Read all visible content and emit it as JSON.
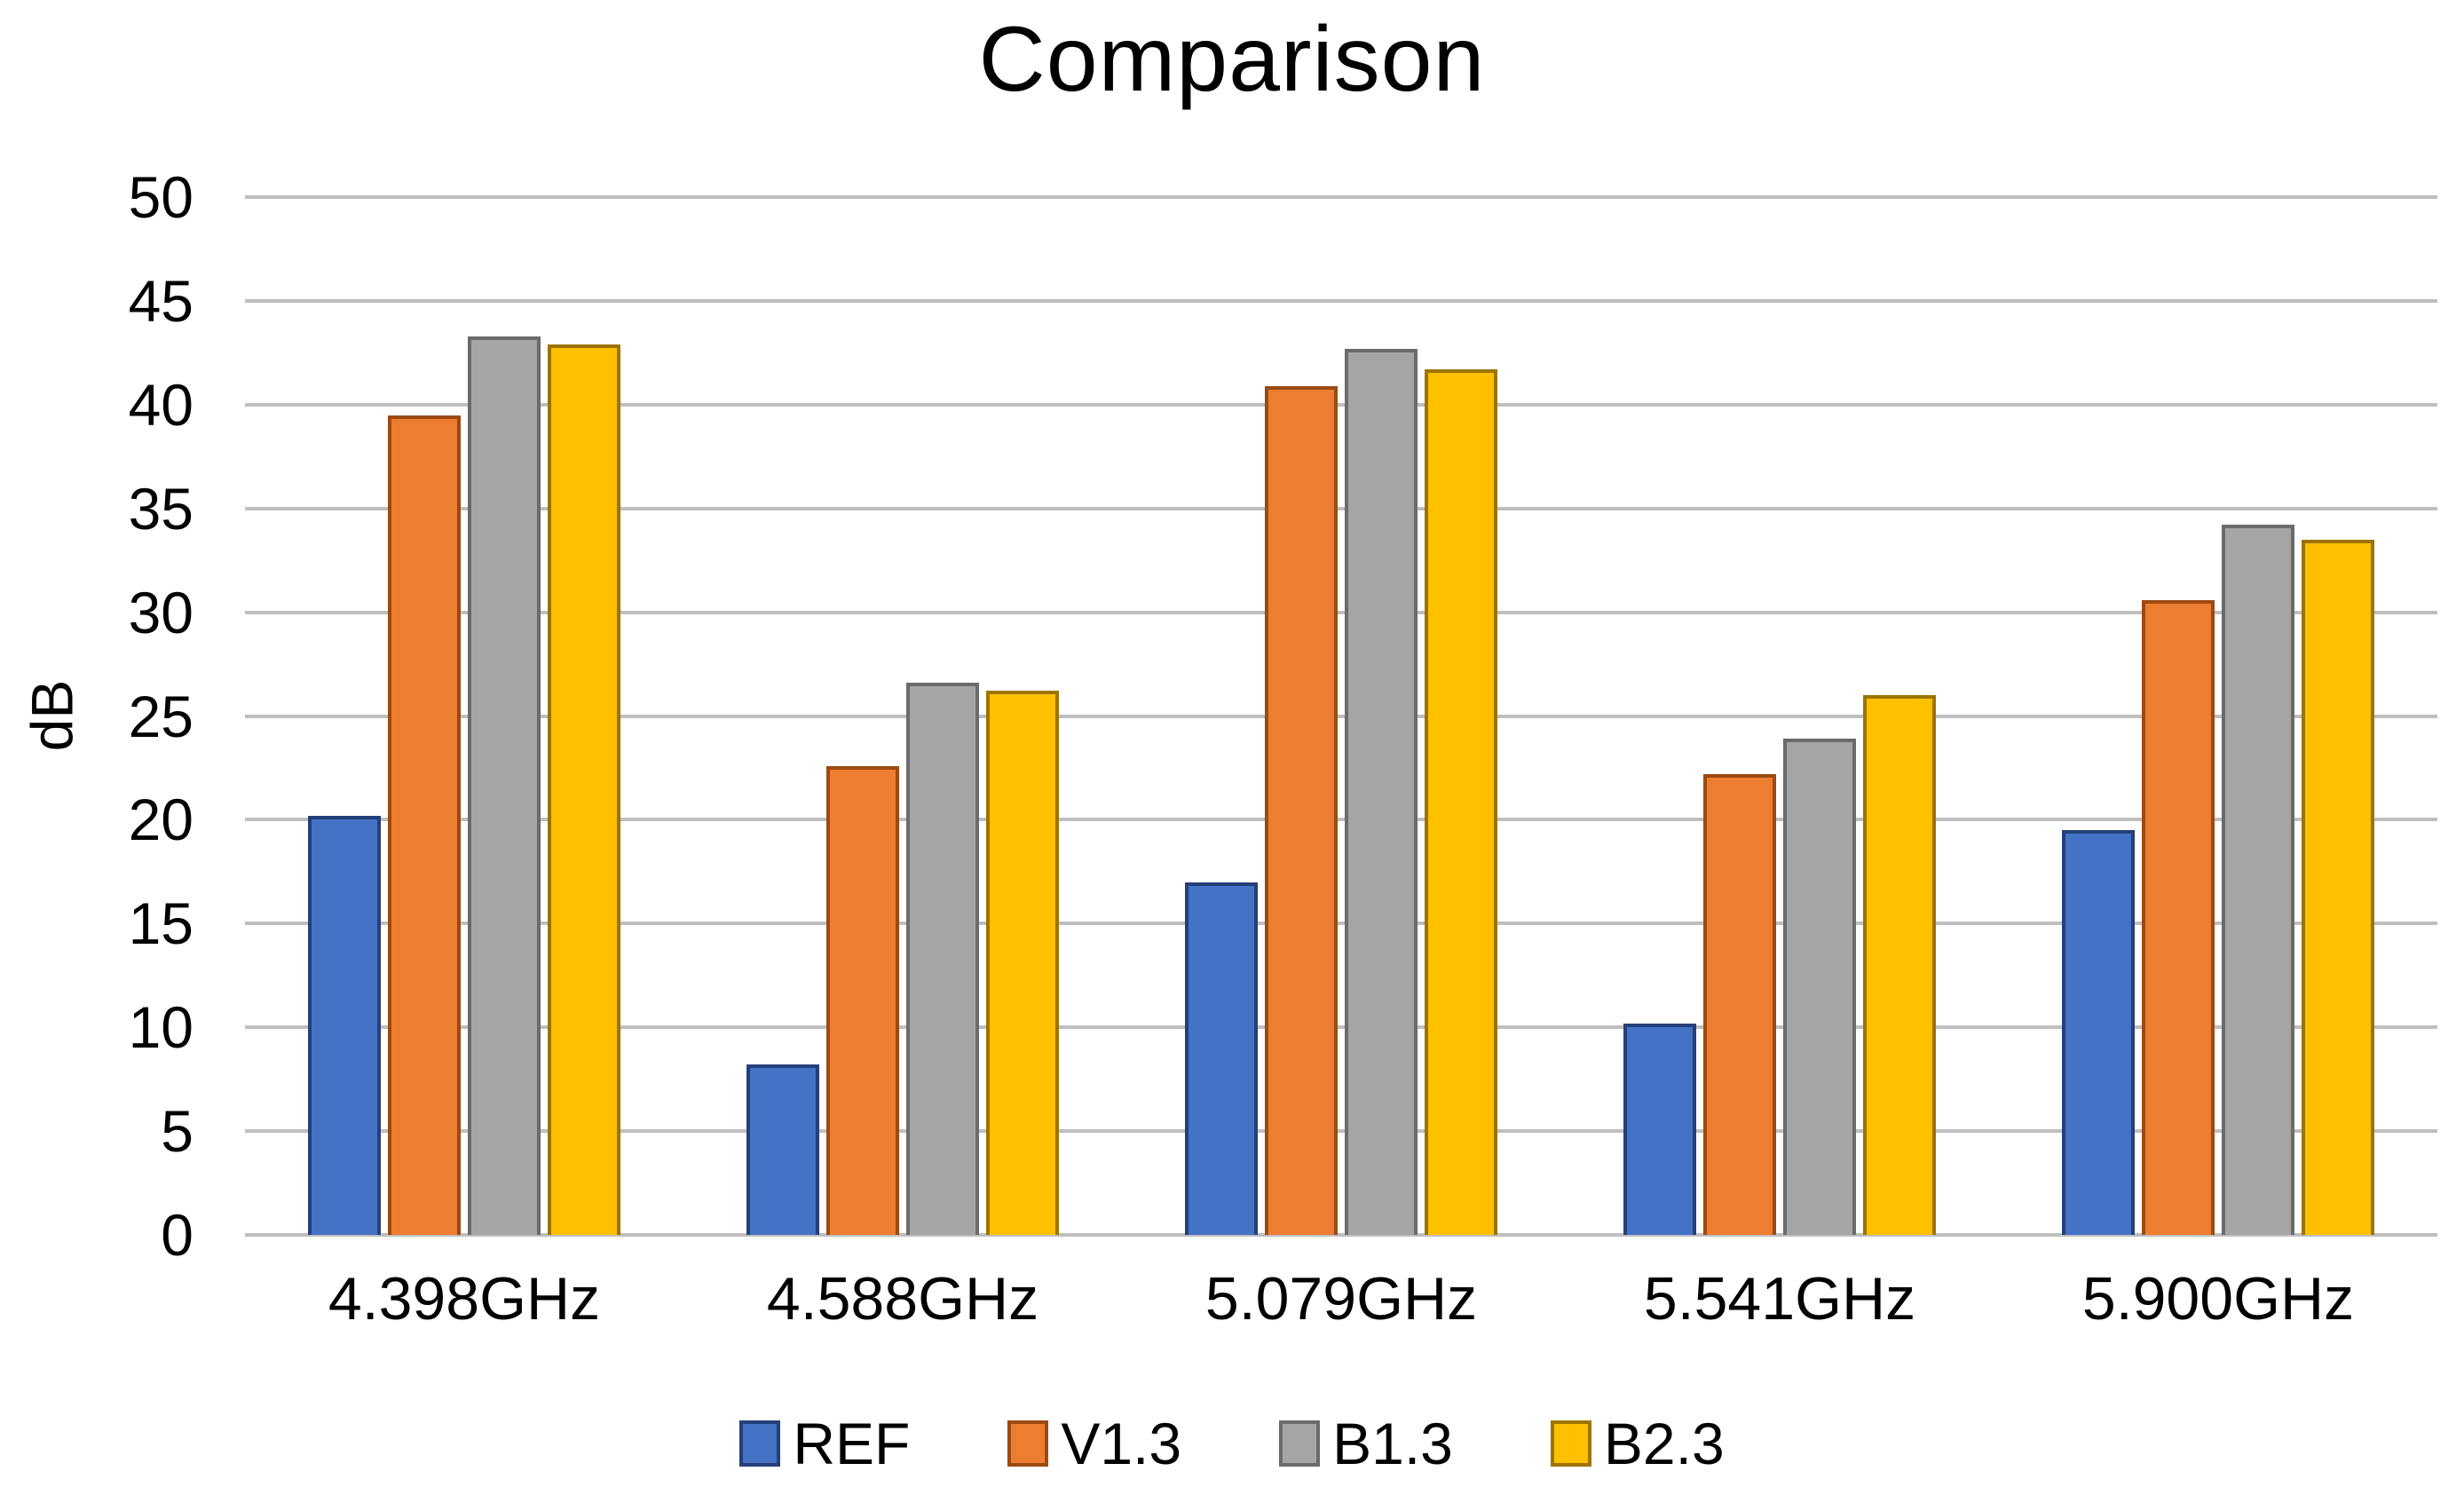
{
  "chart_data": {
    "type": "bar",
    "title": "Comparison",
    "ylabel": "dB",
    "xlabel": "",
    "categories": [
      "4.398GHz",
      "4.588GHz",
      "5.079GHz",
      "5.541GHz",
      "5.900GHz"
    ],
    "series": [
      {
        "name": "REF",
        "color": "#4472C4",
        "border_color": "#24407A",
        "values": [
          20.2,
          8.2,
          17.0,
          10.2,
          19.5
        ]
      },
      {
        "name": "V1.3",
        "color": "#ED7D31",
        "border_color": "#9C4A12",
        "values": [
          39.5,
          22.6,
          40.9,
          22.2,
          30.6
        ]
      },
      {
        "name": "B1.3",
        "color": "#A5A5A5",
        "border_color": "#6B6B6B",
        "values": [
          43.3,
          26.6,
          42.7,
          23.9,
          34.2
        ]
      },
      {
        "name": "B2.3",
        "color": "#FFC000",
        "border_color": "#9C7400",
        "values": [
          42.9,
          26.2,
          41.7,
          26.0,
          33.5
        ]
      }
    ],
    "ylim": [
      0,
      50
    ],
    "ytick_step": 5,
    "grid": true,
    "gridline_color": "#BFBFBF",
    "legend_position": "bottom",
    "background_color": "#FFFFFF",
    "text_color": "#000000"
  }
}
